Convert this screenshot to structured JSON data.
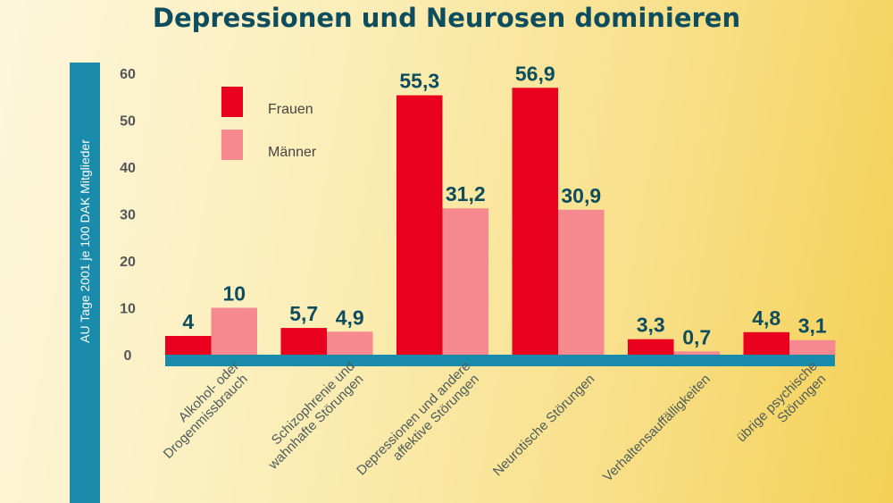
{
  "chart_data": {
    "type": "bar",
    "title": "Depressionen und Neurosen dominieren",
    "ylabel": "AU Tage 2001 je 100 DAK Mitglieder",
    "xlabel": "",
    "ylim": [
      0,
      60
    ],
    "yticks": [
      0,
      10,
      20,
      30,
      40,
      50,
      60
    ],
    "grid": false,
    "legend_position": "top-left",
    "categories": [
      [
        "Alkohol- oder",
        "Drogenmissbrauch"
      ],
      [
        "Schizophrenie und",
        "wahnhafte Störungen"
      ],
      [
        "Depressionen und andere",
        "affektive Störungen"
      ],
      [
        "Neurotische Störungen"
      ],
      [
        "Verhaltensauffälligkeiten"
      ],
      [
        "übrige psychische",
        "Störungen"
      ]
    ],
    "series": [
      {
        "name": "Frauen",
        "color": "#e8001e",
        "values": [
          4,
          5.7,
          55.3,
          56.9,
          3.3,
          4.8
        ],
        "labels": [
          "4",
          "5,7",
          "55,3",
          "56,9",
          "3,3",
          "4,8"
        ]
      },
      {
        "name": "Männer",
        "color": "#f6888f",
        "values": [
          10,
          4.9,
          31.2,
          30.9,
          0.7,
          3.1
        ],
        "labels": [
          "10",
          "4,9",
          "31,2",
          "30,9",
          "0,7",
          "3,1"
        ]
      }
    ],
    "colors": {
      "axis_band": "#1a8bab",
      "title": "#0d4d5e"
    }
  }
}
